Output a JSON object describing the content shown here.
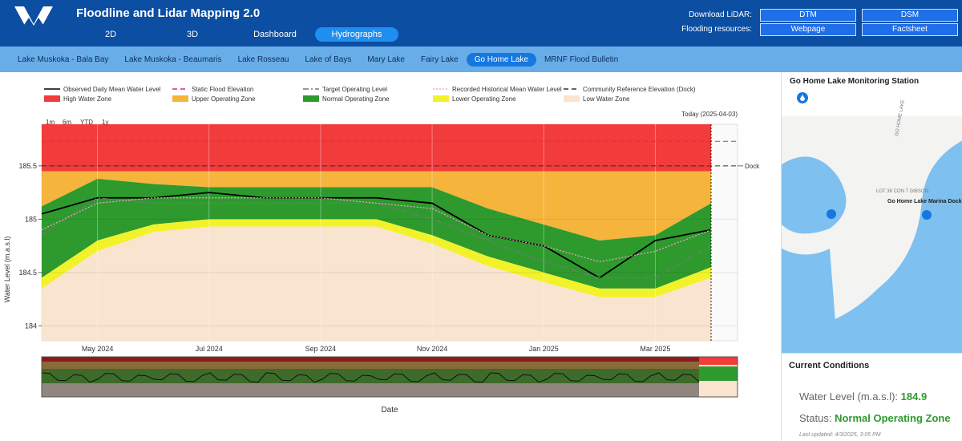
{
  "header": {
    "title": "Floodline and Lidar Mapping 2.0",
    "tabs": [
      "2D",
      "3D",
      "Dashboard",
      "Hydrographs"
    ],
    "download_label": "Download LiDAR:",
    "download_buttons": [
      "DTM",
      "DSM"
    ],
    "resources_label": "Flooding resources:",
    "resources_buttons": [
      "Webpage",
      "Factsheet"
    ]
  },
  "lakes": [
    "Lake Muskoka - Bala Bay",
    "Lake Muskoka - Beaumaris",
    "Lake Rosseau",
    "Lake of Bays",
    "Mary Lake",
    "Fairy Lake",
    "Go Home Lake",
    "MRNF Flood Bulletin"
  ],
  "chart_data": {
    "type": "line",
    "y_label": "Water Level (m.a.s.l)",
    "x_label": "Date",
    "annotation": "Today (2025-04-03)",
    "range_buttons": [
      "1m",
      "6m",
      "YTD",
      "1y"
    ],
    "x": [
      "2024-04",
      "2024-05",
      "2024-06",
      "2024-07",
      "2024-08",
      "2024-09",
      "2024-10",
      "2024-11",
      "2024-12",
      "2025-01",
      "2025-02",
      "2025-03",
      "2025-04"
    ],
    "xlim": [
      "2024-04",
      "2025-04"
    ],
    "xticks": [
      {
        "value": "2024-05",
        "label": "May 2024"
      },
      {
        "value": "2024-07",
        "label": "Jul 2024"
      },
      {
        "value": "2024-09",
        "label": "Sep 2024"
      },
      {
        "value": "2024-11",
        "label": "Nov 2024"
      },
      {
        "value": "2025-01",
        "label": "Jan 2025"
      },
      {
        "value": "2025-03",
        "label": "Mar 2025"
      }
    ],
    "ylim": [
      183.86,
      185.89
    ],
    "yticks": [
      184,
      184.5,
      185,
      185.5
    ],
    "grid": true,
    "series": [
      {
        "name": "Observed Daily Mean Water Level",
        "color": "#000000",
        "dash": "solid",
        "values": [
          185.05,
          185.2,
          185.2,
          185.25,
          185.2,
          185.2,
          185.2,
          185.15,
          184.85,
          184.75,
          184.45,
          184.8,
          184.9
        ]
      },
      {
        "name": "Target Operating Level",
        "color": "#777777",
        "dash": "dashdot",
        "values": [
          184.85,
          185.2,
          185.15,
          185.15,
          185.15,
          185.15,
          185.15,
          185.0,
          184.8,
          184.6,
          184.45,
          184.45,
          184.75
        ]
      },
      {
        "name": "Recorded Historical Mean Water Level",
        "color": "#f4a6c8",
        "dash": "dot",
        "values": [
          184.9,
          185.15,
          185.2,
          185.2,
          185.2,
          185.2,
          185.15,
          185.1,
          184.85,
          184.75,
          184.6,
          184.7,
          184.9
        ]
      }
    ],
    "lines": [
      {
        "name": "Static Flood Elevation",
        "color": "#c0308a",
        "dash": "dash",
        "value": 185.73
      },
      {
        "name": "Community Reference Elevation (Dock)",
        "color": "#333333",
        "dash": "dash",
        "value": 185.5,
        "label": "Dock"
      }
    ],
    "bands": [
      {
        "name": "High Water Zone",
        "color": "#f23b3b",
        "values": [
          185.45,
          185.45,
          185.45,
          185.45,
          185.45,
          185.45,
          185.45,
          185.45,
          185.45,
          185.45,
          185.45,
          185.45,
          185.45
        ]
      },
      {
        "name": "Upper Operating Zone",
        "color": "#f5b43c",
        "values": [
          185.12,
          185.38,
          185.33,
          185.3,
          185.3,
          185.3,
          185.3,
          185.3,
          185.1,
          184.95,
          184.8,
          184.85,
          185.15
        ]
      },
      {
        "name": "Normal Operating Zone",
        "color": "#2e9a2e",
        "values": [
          184.45,
          184.8,
          184.95,
          185.0,
          185.0,
          185.0,
          185.0,
          184.85,
          184.65,
          184.5,
          184.35,
          184.35,
          184.55
        ]
      },
      {
        "name": "Lower Operating Zone",
        "color": "#f2f22a",
        "values": [
          184.35,
          184.7,
          184.88,
          184.93,
          184.93,
          184.93,
          184.93,
          184.77,
          184.56,
          184.41,
          184.27,
          184.27,
          184.45
        ]
      },
      {
        "name": "Low Water Zone",
        "color": "#f8e4cf"
      }
    ]
  },
  "station": {
    "title": "Go Home Lake Monitoring Station",
    "map_labels": [
      "GO HOME LAKE",
      "LOT 38 CON 7 GIBSON",
      "Go Home Lake Marina Dock"
    ]
  },
  "conditions": {
    "title": "Current Conditions",
    "level_label": "Water Level (m.a.s.l):",
    "level_value": 184.9,
    "status_label": "Status:",
    "status_value": "Normal Operating Zone",
    "updated": "Last updated: 4/3/2025, 3:05 PM"
  }
}
